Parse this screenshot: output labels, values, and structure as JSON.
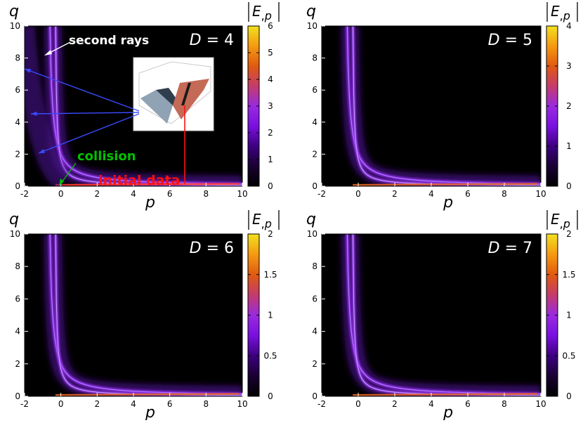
{
  "colors": {
    "background": "#ffffff",
    "plot_bg": "#000000",
    "colormap": [
      "#000000",
      "#1a0033",
      "#3d0080",
      "#7a10e0",
      "#9a2adf",
      "#c43c6a",
      "#e05a10",
      "#f59a10",
      "#f2e020"
    ],
    "annot_second_rays": "#ffffff",
    "annot_collision": "#00c000",
    "annot_initial_data": "#ff1010",
    "arrow_blue": "#3a4aff"
  },
  "chart_data": [
    {
      "type": "heatmap",
      "id": "d4",
      "panel_label": "D = 4",
      "title": "D = 4",
      "xlabel": "p",
      "ylabel": "q",
      "colorbar_label": "|E,p|",
      "xlim": [
        -2,
        10
      ],
      "ylim": [
        0,
        10
      ],
      "xticks": [
        "-2",
        "0",
        "2",
        "4",
        "6",
        "8",
        "10"
      ],
      "yticks": [
        "0",
        "2",
        "4",
        "6",
        "8",
        "10"
      ],
      "cbar_range": [
        0,
        6
      ],
      "cbar_ticks": [
        "0",
        "1",
        "2",
        "3",
        "4",
        "5",
        "6"
      ],
      "ridge_curves": [
        {
          "name": "outer ridge",
          "curve": "q = 1.5/(p + 0.75)"
        },
        {
          "name": "inner ridge",
          "curve": "q = 0.6/(p + 0.35)"
        }
      ],
      "annotations": [
        {
          "id": "second-rays",
          "text": "second rays"
        },
        {
          "id": "collision",
          "text": "collision"
        },
        {
          "id": "initial-data",
          "text": "initial data"
        }
      ],
      "inset": "3D surface plot"
    },
    {
      "type": "heatmap",
      "id": "d5",
      "panel_label": "D = 5",
      "title": "D = 5",
      "xlabel": "p",
      "ylabel": "q",
      "colorbar_label": "|E,p|",
      "xlim": [
        -2,
        10
      ],
      "ylim": [
        0,
        10
      ],
      "xticks": [
        "-2",
        "0",
        "2",
        "4",
        "6",
        "8",
        "10"
      ],
      "yticks": [
        "0",
        "2",
        "4",
        "6",
        "8",
        "10"
      ],
      "cbar_range": [
        0,
        4
      ],
      "cbar_ticks": [
        "0",
        "1",
        "2",
        "3",
        "4"
      ],
      "ridge_curves": [
        {
          "name": "outer ridge",
          "curve": "q = 1.5/(p + 0.75)"
        },
        {
          "name": "inner ridge",
          "curve": "q = 0.6/(p + 0.35)"
        }
      ]
    },
    {
      "type": "heatmap",
      "id": "d6",
      "panel_label": "D = 6",
      "title": "D = 6",
      "xlabel": "p",
      "ylabel": "q",
      "colorbar_label": "|E,p|",
      "xlim": [
        -2,
        10
      ],
      "ylim": [
        0,
        10
      ],
      "xticks": [
        "-2",
        "0",
        "2",
        "4",
        "6",
        "8",
        "10"
      ],
      "yticks": [
        "0",
        "2",
        "4",
        "6",
        "8",
        "10"
      ],
      "cbar_range": [
        0,
        2
      ],
      "cbar_ticks": [
        "0",
        "0.5",
        "1",
        "1.5",
        "2"
      ],
      "ridge_curves": [
        {
          "name": "outer ridge",
          "curve": "q = 1.5/(p + 0.75)"
        },
        {
          "name": "inner ridge",
          "curve": "q = 0.6/(p + 0.35)"
        }
      ]
    },
    {
      "type": "heatmap",
      "id": "d7",
      "panel_label": "D = 7",
      "title": "D = 7",
      "xlabel": "p",
      "ylabel": "q",
      "colorbar_label": "|E,p|",
      "xlim": [
        -2,
        10
      ],
      "ylim": [
        0,
        10
      ],
      "xticks": [
        "-2",
        "0",
        "2",
        "4",
        "6",
        "8",
        "10"
      ],
      "yticks": [
        "0",
        "2",
        "4",
        "6",
        "8",
        "10"
      ],
      "cbar_range": [
        0,
        2
      ],
      "cbar_ticks": [
        "0",
        "0.5",
        "1",
        "1.5",
        "2"
      ],
      "ridge_curves": [
        {
          "name": "outer ridge",
          "curve": "q = 1.5/(p + 0.75)"
        },
        {
          "name": "inner ridge",
          "curve": "q = 0.6/(p + 0.35)"
        }
      ]
    }
  ]
}
